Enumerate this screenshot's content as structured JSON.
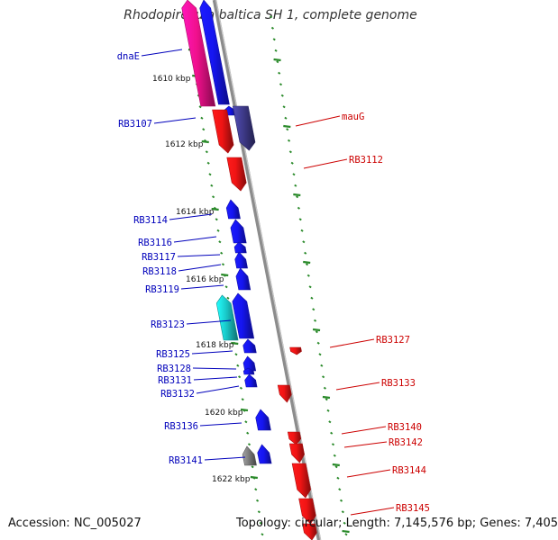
{
  "title": "Rhodopirellula baltica SH 1, complete genome",
  "footer": {
    "accession": "Accession: NC_005027",
    "summary": "Topology: circular; Length: 7,145,576 bp; Genes: 7,405"
  },
  "colors": {
    "backbone": "#8c8c8c",
    "tick": "#2a8a2a",
    "forward_label": "#0000bb",
    "reverse_label": "#cc0000",
    "kbp_label": "#111111"
  },
  "kbp_labels": [
    "1610 kbp",
    "1612 kbp",
    "1614 kbp",
    "1616 kbp",
    "1618 kbp",
    "1620 kbp",
    "1622 kbp"
  ],
  "gene_labels_forward": [
    "dnaE",
    "RB3107",
    "RB3114",
    "RB3116",
    "RB3117",
    "RB3118",
    "RB3119",
    "RB3123",
    "RB3125",
    "RB3128",
    "RB3131",
    "RB3132",
    "RB3136",
    "RB3141"
  ],
  "gene_labels_reverse": [
    "mauG",
    "RB3112",
    "RB3127",
    "RB3133",
    "RB3140",
    "RB3142",
    "RB3144",
    "RB3145"
  ],
  "gene_colors": {
    "blue": "#1515f0",
    "magenta": "#f0108c",
    "red": "#f01414",
    "darkpurple": "#3e3a8a",
    "cyan": "#19c8c8",
    "gray": "#7a7a7a"
  }
}
